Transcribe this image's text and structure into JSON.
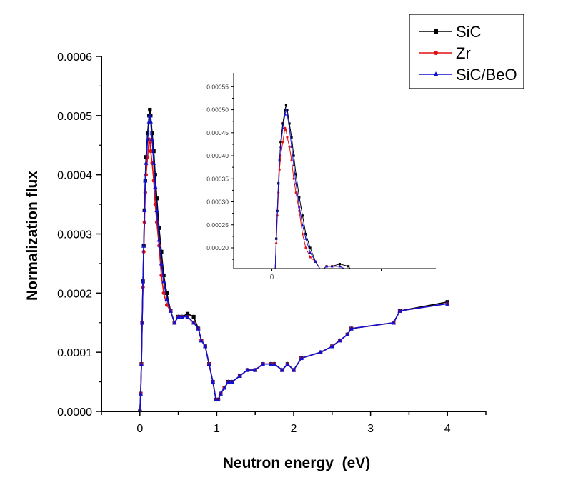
{
  "chart_data": {
    "type": "line",
    "title": "",
    "xlabel": "Neutron energy  (eV)",
    "ylabel": "Normalization flux",
    "xlim": [
      -0.5,
      4.5
    ],
    "ylim": [
      0,
      0.0006
    ],
    "xticks": [
      "0",
      "1",
      "2",
      "3",
      "4"
    ],
    "yticks": [
      "0.0000",
      "0.0001",
      "0.0002",
      "0.0003",
      "0.0004",
      "0.0005",
      "0.0006"
    ],
    "grid": false,
    "legend_position": "top-right",
    "x": [
      0,
      0.01,
      0.02,
      0.03,
      0.04,
      0.05,
      0.06,
      0.07,
      0.08,
      0.1,
      0.12,
      0.13,
      0.14,
      0.16,
      0.18,
      0.2,
      0.22,
      0.25,
      0.28,
      0.31,
      0.35,
      0.4,
      0.45,
      0.5,
      0.55,
      0.62,
      0.7,
      0.76,
      0.8,
      0.85,
      0.9,
      0.95,
      0.99,
      1.02,
      1.05,
      1.1,
      1.15,
      1.2,
      1.3,
      1.4,
      1.5,
      1.6,
      1.7,
      1.75,
      1.85,
      1.92,
      2.0,
      2.1,
      2.35,
      2.5,
      2.6,
      2.7,
      2.75,
      3.3,
      3.38,
      4.0
    ],
    "series": [
      {
        "name": "SiC",
        "color": "#000000",
        "marker": "square",
        "values": [
          0,
          3e-05,
          8e-05,
          0.00015,
          0.00022,
          0.00028,
          0.00034,
          0.00039,
          0.00043,
          0.00047,
          0.0005,
          0.00051,
          0.0005,
          0.00047,
          0.00044,
          0.0004,
          0.00036,
          0.00031,
          0.00027,
          0.00023,
          0.0002,
          0.00017,
          0.00015,
          0.00016,
          0.00016,
          0.000165,
          0.00016,
          0.00014,
          0.00012,
          0.00011,
          8e-05,
          5e-05,
          2e-05,
          2e-05,
          3e-05,
          4e-05,
          5e-05,
          5e-05,
          6e-05,
          7e-05,
          7e-05,
          8e-05,
          8e-05,
          8e-05,
          7e-05,
          8e-05,
          7e-05,
          9e-05,
          0.0001,
          0.00011,
          0.00012,
          0.00013,
          0.00014,
          0.00015,
          0.00017,
          0.000185
        ]
      },
      {
        "name": "Zr",
        "color": "#e01010",
        "marker": "circle",
        "values": [
          0,
          3e-05,
          8e-05,
          0.00015,
          0.00021,
          0.00027,
          0.00032,
          0.00037,
          0.0004,
          0.00043,
          0.00046,
          0.000455,
          0.00044,
          0.00042,
          0.00039,
          0.00035,
          0.00032,
          0.00028,
          0.00023,
          0.0002,
          0.00018,
          0.00017,
          0.00015,
          0.00016,
          0.00016,
          0.00016,
          0.00015,
          0.00014,
          0.00012,
          0.00011,
          8e-05,
          5e-05,
          2e-05,
          2e-05,
          3e-05,
          4e-05,
          5e-05,
          5e-05,
          6e-05,
          7e-05,
          7e-05,
          8e-05,
          8e-05,
          8e-05,
          7e-05,
          8e-05,
          7e-05,
          9e-05,
          0.0001,
          0.00011,
          0.00012,
          0.00013,
          0.00014,
          0.00015,
          0.00017,
          0.000182
        ]
      },
      {
        "name": "SiC/BeO",
        "color": "#1010d0",
        "marker": "triangle",
        "values": [
          0,
          3e-05,
          8e-05,
          0.00015,
          0.00022,
          0.00028,
          0.00034,
          0.00039,
          0.00042,
          0.00046,
          0.00049,
          0.0005,
          0.00049,
          0.00046,
          0.00042,
          0.00038,
          0.00034,
          0.00029,
          0.00025,
          0.00022,
          0.00019,
          0.00017,
          0.00015,
          0.00016,
          0.00016,
          0.00016,
          0.00015,
          0.00014,
          0.00012,
          0.00011,
          8e-05,
          5e-05,
          2e-05,
          2e-05,
          3e-05,
          4e-05,
          5e-05,
          5e-05,
          6e-05,
          7e-05,
          7e-05,
          8e-05,
          8e-05,
          8e-05,
          7e-05,
          8e-05,
          7e-05,
          9e-05,
          0.0001,
          0.00011,
          0.00012,
          0.00013,
          0.00014,
          0.00015,
          0.00017,
          0.000182
        ]
      }
    ],
    "inset": {
      "xlim": [
        -0.35,
        1.5
      ],
      "ylim": [
        0.000155,
        0.00058
      ],
      "xticks": [
        "0"
      ],
      "yticks": [
        "0.00020",
        "0.00025",
        "0.00030",
        "0.00035",
        "0.00040",
        "0.00045",
        "0.00050",
        "0.00055"
      ]
    }
  }
}
